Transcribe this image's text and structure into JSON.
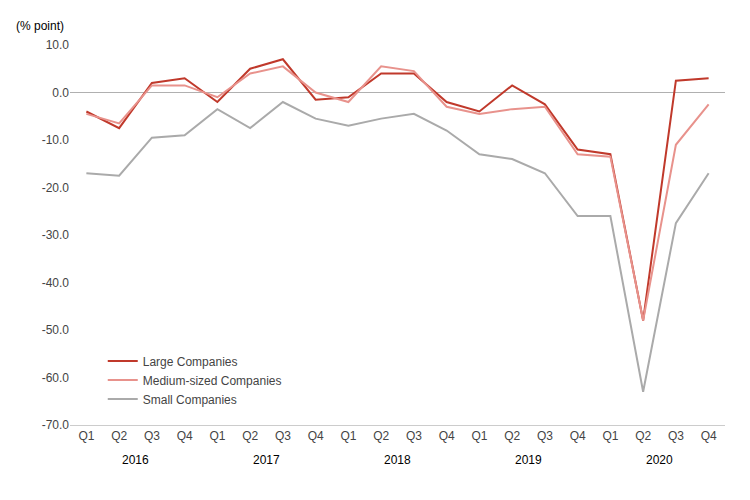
{
  "chart_data": {
    "type": "line",
    "ylabel": "(% point)",
    "categories": [
      "Q1",
      "Q2",
      "Q3",
      "Q4",
      "Q1",
      "Q2",
      "Q3",
      "Q4",
      "Q1",
      "Q2",
      "Q3",
      "Q4",
      "Q1",
      "Q2",
      "Q3",
      "Q4",
      "Q1",
      "Q2",
      "Q3",
      "Q4"
    ],
    "annotations": [
      "2016",
      "2017",
      "2018",
      "2019",
      "2020"
    ],
    "series": [
      {
        "name": "Large Companies",
        "color": "#c0392b",
        "values": [
          -4.0,
          -7.5,
          2.0,
          3.0,
          -2.0,
          5.0,
          7.0,
          -1.5,
          -1.0,
          4.0,
          4.0,
          -2.0,
          -4.0,
          1.5,
          -2.5,
          -12.0,
          -13.0,
          -48.0,
          2.5,
          3.0
        ]
      },
      {
        "name": "Medium-sized Companies",
        "color": "#e8928c",
        "values": [
          -4.5,
          -6.5,
          1.5,
          1.5,
          -1.0,
          4.0,
          5.5,
          0.0,
          -2.0,
          5.5,
          4.5,
          -3.0,
          -4.5,
          -3.5,
          -3.0,
          -13.0,
          -13.5,
          -48.0,
          -11.0,
          -2.5
        ]
      },
      {
        "name": "Small Companies",
        "color": "#aaaaaa",
        "values": [
          -17.0,
          -17.5,
          -9.5,
          -9.0,
          -3.5,
          -7.5,
          -2.0,
          -5.5,
          -7.0,
          -5.5,
          -4.5,
          -8.0,
          -13.0,
          -14.0,
          -17.0,
          -26.0,
          -26.0,
          -63.0,
          -27.5,
          -17.0
        ]
      }
    ],
    "ylim": [
      -70.0,
      10.0
    ],
    "yticks": [
      {
        "value": 10.0,
        "label": "10.0"
      },
      {
        "value": 0.0,
        "label": "0.0"
      },
      {
        "value": -10.0,
        "label": "-10.0"
      },
      {
        "value": -20.0,
        "label": "-20.0"
      },
      {
        "value": -30.0,
        "label": "-30.0"
      },
      {
        "value": -40.0,
        "label": "-40.0"
      },
      {
        "value": -50.0,
        "label": "-50.0"
      },
      {
        "value": -60.0,
        "label": "-60.0"
      },
      {
        "value": -70.0,
        "label": "-70.0"
      }
    ],
    "grid": false,
    "legend": "lower left"
  }
}
